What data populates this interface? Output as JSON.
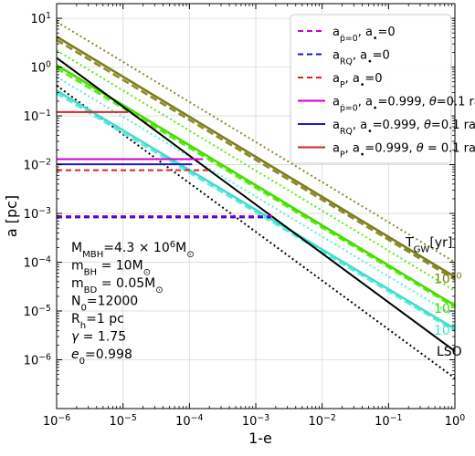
{
  "chart_data": {
    "type": "line",
    "xlabel": "1-e",
    "ylabel": "a [pc]",
    "xscale": "log",
    "yscale": "log",
    "xlim": [
      1e-06,
      1
    ],
    "ylim": [
      1e-07,
      20
    ],
    "x_ticks": [
      {
        "v": 1e-06,
        "b": "10",
        "e": "−6"
      },
      {
        "v": 1e-05,
        "b": "10",
        "e": "−5"
      },
      {
        "v": 0.0001,
        "b": "10",
        "e": "−4"
      },
      {
        "v": 0.001,
        "b": "10",
        "e": "−3"
      },
      {
        "v": 0.01,
        "b": "10",
        "e": "−2"
      },
      {
        "v": 0.1,
        "b": "10",
        "e": "−1"
      },
      {
        "v": 1,
        "b": "10",
        "e": "0"
      }
    ],
    "y_ticks": [
      {
        "v": 1e-06,
        "b": "10",
        "e": "−6"
      },
      {
        "v": 1e-05,
        "b": "10",
        "e": "−5"
      },
      {
        "v": 0.0001,
        "b": "10",
        "e": "−4"
      },
      {
        "v": 0.001,
        "b": "10",
        "e": "−3"
      },
      {
        "v": 0.01,
        "b": "10",
        "e": "−2"
      },
      {
        "v": 0.1,
        "b": "10",
        "e": "−1"
      },
      {
        "v": 1,
        "b": "10",
        "e": "0"
      },
      {
        "v": 10,
        "b": "10",
        "e": "1"
      }
    ],
    "legend_position": "top-right",
    "legend": [
      {
        "color": "#cc00cc",
        "dash": "6,4",
        "parts": [
          [
            "a",
            ""
          ],
          [
            "ṗ=0",
            "sub"
          ],
          [
            ", a",
            ""
          ],
          [
            "•",
            "sub"
          ],
          [
            "=0",
            ""
          ]
        ]
      },
      {
        "color": "#1a1acc",
        "dash": "6,4",
        "parts": [
          [
            "a",
            ""
          ],
          [
            "RQ",
            "sub"
          ],
          [
            ", a",
            ""
          ],
          [
            "•",
            "sub"
          ],
          [
            "=0",
            ""
          ]
        ]
      },
      {
        "color": "#dd2222",
        "dash": "6,4",
        "parts": [
          [
            "a",
            ""
          ],
          [
            "P",
            "sub"
          ],
          [
            ", a",
            ""
          ],
          [
            "•",
            "sub"
          ],
          [
            "=0",
            ""
          ]
        ]
      },
      {
        "color": "#cc00cc",
        "dash": "",
        "parts": [
          [
            "a",
            ""
          ],
          [
            "ṗ=0",
            "sub"
          ],
          [
            ", a",
            ""
          ],
          [
            "•",
            "sub"
          ],
          [
            "=0.999, ",
            ""
          ],
          [
            "θ",
            "it"
          ],
          [
            "=0.1 rad",
            ""
          ]
        ]
      },
      {
        "color": "#1a1acc",
        "dash": "",
        "parts": [
          [
            "a",
            ""
          ],
          [
            "RQ",
            "sub"
          ],
          [
            ", a",
            ""
          ],
          [
            "•",
            "sub"
          ],
          [
            "=0.999, ",
            ""
          ],
          [
            "θ",
            "it"
          ],
          [
            "=0.1 rad",
            ""
          ]
        ]
      },
      {
        "color": "#dd2222",
        "dash": "",
        "parts": [
          [
            "a",
            ""
          ],
          [
            "P",
            "sub"
          ],
          [
            ", a",
            ""
          ],
          [
            "•",
            "sub"
          ],
          [
            "=0.999, ",
            ""
          ],
          [
            "θ",
            "it"
          ],
          [
            " = 0.1 rad",
            ""
          ]
        ]
      }
    ],
    "horizontal_segments": [
      {
        "color": "#dd2222",
        "dash": "",
        "y": 0.12,
        "x": [
          1e-06,
          1.2e-05
        ]
      },
      {
        "color": "#cc00cc",
        "dash": "",
        "y": 0.013,
        "x": [
          1e-06,
          0.00016
        ]
      },
      {
        "color": "#1a1acc",
        "dash": "",
        "y": 0.0102,
        "x": [
          1e-06,
          0.00011
        ]
      },
      {
        "color": "#dd2222",
        "dash": "6,4",
        "y": 0.0077,
        "x": [
          1e-06,
          0.00019
        ]
      },
      {
        "color": "#cc00cc",
        "dash": "6,4",
        "y": 0.00088,
        "x": [
          1e-06,
          0.0019
        ]
      },
      {
        "color": "#1a1acc",
        "dash": "6,4",
        "y": 0.00083,
        "x": [
          1e-06,
          0.0017
        ]
      }
    ],
    "gw_lines": [
      {
        "name": "10",
        "exp": "10",
        "color": "#7d7d1a",
        "lightColor": "#8a8a2a",
        "solid": [
          [
            1e-06,
            4.2
          ],
          [
            1,
            5e-05
          ]
        ],
        "dashed": [
          [
            1e-06,
            3.6
          ],
          [
            1,
            4.4e-05
          ]
        ],
        "dotted": [
          [
            1e-06,
            8.5
          ],
          [
            1,
            0.0001
          ]
        ],
        "label_y": 4.8e-05
      },
      {
        "name": "10",
        "exp": "8",
        "color": "#44dd00",
        "lightColor": "#55ee11",
        "solid": [
          [
            1e-06,
            1.1
          ],
          [
            1,
            1.3e-05
          ]
        ],
        "dashed": [
          [
            1e-06,
            0.95
          ],
          [
            1,
            1.2e-05
          ]
        ],
        "dotted": [
          [
            1e-06,
            2.2
          ],
          [
            1,
            2.6e-05
          ]
        ],
        "label_y": 1.2e-05
      },
      {
        "name": "10",
        "exp": "6",
        "color": "#44ddcc",
        "lightColor": "#55eedd",
        "solid": [
          [
            1e-06,
            0.33
          ],
          [
            1,
            4.3e-06
          ]
        ],
        "dashed": [
          [
            1e-06,
            0.29
          ],
          [
            1,
            3.9e-06
          ]
        ],
        "dotted": [
          [
            1e-06,
            0.63
          ],
          [
            1,
            7.8e-06
          ]
        ],
        "label_y": 4.2e-06
      }
    ],
    "lso": {
      "label": "LSO",
      "color": "#000000",
      "points": [
        [
          1e-06,
          1.55
        ],
        [
          1,
          1.5e-06
        ]
      ],
      "label_y": 1.5e-06
    },
    "dotted_black": {
      "color": "#000000",
      "points": [
        [
          1e-06,
          0.42
        ],
        [
          1,
          4.2e-07
        ]
      ]
    },
    "tgw_label": {
      "text": "T",
      "sub": "GW",
      "rest": "[yr]",
      "y": 0.00025
    },
    "params": [
      {
        "parts": [
          [
            "M",
            ""
          ],
          [
            "MBH",
            "sub"
          ],
          [
            "=4.3 × 10",
            ""
          ],
          [
            "6",
            "sup"
          ],
          [
            "M",
            ""
          ],
          [
            "⊙",
            "sub"
          ]
        ]
      },
      {
        "parts": [
          [
            "m",
            ""
          ],
          [
            "BH",
            "sub"
          ],
          [
            " = 10M",
            ""
          ],
          [
            "⊙",
            "sub"
          ]
        ]
      },
      {
        "parts": [
          [
            "m",
            ""
          ],
          [
            "BD",
            "sub"
          ],
          [
            " = 0.05M",
            ""
          ],
          [
            "⊙",
            "sub"
          ]
        ]
      },
      {
        "parts": [
          [
            "N",
            ""
          ],
          [
            "0",
            "sub"
          ],
          [
            "=12000",
            ""
          ]
        ]
      },
      {
        "parts": [
          [
            "R",
            ""
          ],
          [
            "h",
            "sub"
          ],
          [
            "=1 pc",
            ""
          ]
        ]
      },
      {
        "parts": [
          [
            "γ",
            "it"
          ],
          [
            " = 1.75",
            ""
          ]
        ]
      },
      {
        "parts": [
          [
            "e",
            "it"
          ],
          [
            "0",
            "sub"
          ],
          [
            "=0.998",
            ""
          ]
        ]
      }
    ]
  }
}
